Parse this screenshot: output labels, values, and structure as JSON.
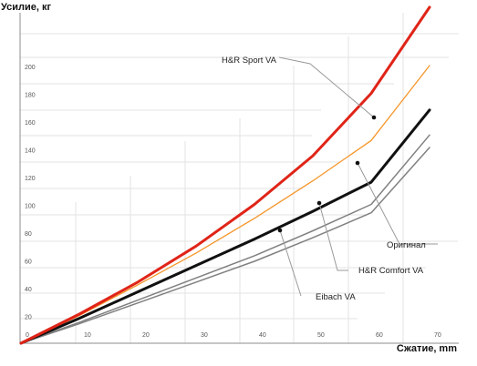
{
  "chart_data": {
    "type": "line",
    "xlabel": "Сжатие, mm",
    "ylabel": "Усилие, кг",
    "xlim": [
      0,
      70
    ],
    "ylim": [
      0,
      200
    ],
    "x_ticks": [
      "0",
      "10",
      "20",
      "30",
      "40",
      "50",
      "60",
      "70"
    ],
    "y_ticks": [
      "20",
      "40",
      "60",
      "80",
      "100",
      "120",
      "140",
      "160",
      "180",
      "200"
    ],
    "grid": true,
    "legend": "callout labels",
    "series": [
      {
        "name": "H&R Sport VA",
        "color": "#e02418",
        "width": 3,
        "x": [
          0,
          10,
          20,
          30,
          40,
          50,
          60,
          70
        ],
        "y": [
          0,
          21,
          44,
          70,
          100,
          135,
          180,
          242
        ]
      },
      {
        "name": "",
        "color": "#f5962a",
        "width": 1.3,
        "x": [
          0,
          10,
          20,
          30,
          40,
          50,
          60,
          70
        ],
        "y": [
          0,
          20,
          42,
          65,
          90,
          117,
          146,
          200
        ]
      },
      {
        "name": "Оригинал",
        "color": "#111111",
        "width": 3,
        "x": [
          0,
          10,
          20,
          30,
          40,
          50,
          60,
          70
        ],
        "y": [
          0,
          18,
          37,
          56,
          75,
          95,
          116,
          168
        ]
      },
      {
        "name": "H&R Comfort VA",
        "color": "#808080",
        "width": 1.5,
        "x": [
          0,
          10,
          20,
          30,
          40,
          50,
          60,
          70
        ],
        "y": [
          0,
          15,
          31,
          47,
          63,
          81,
          100,
          150
        ]
      },
      {
        "name": "Eibach VA",
        "color": "#808080",
        "width": 1.5,
        "x": [
          0,
          10,
          20,
          30,
          40,
          50,
          60,
          70
        ],
        "y": [
          0,
          14,
          29,
          44,
          59,
          76,
          94,
          141
        ]
      }
    ],
    "annotations": [
      {
        "series": 1,
        "text": "H&R Sport VA",
        "point_x": 61,
        "point_y": 170
      },
      {
        "series": 2,
        "text": "Оригинал",
        "point_x": 57.5,
        "point_y": 136
      },
      {
        "series": 3,
        "text": "H&R Comfort VA",
        "point_x": 51.5,
        "point_y": 106
      },
      {
        "series": 4,
        "text": "Eibach VA",
        "point_x": 45,
        "point_y": 85
      }
    ]
  }
}
